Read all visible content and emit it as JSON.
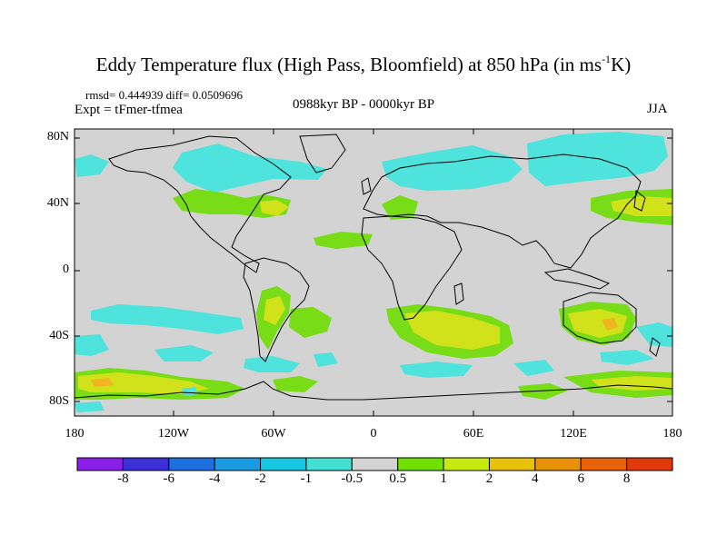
{
  "title": {
    "main": "Eddy Temperature flux (High Pass, Bloomfield) at 850 hPa (in ms",
    "sup": "-1",
    "end": "K)"
  },
  "stats_line": "rmsd= 0.444939 diff= 0.0509696",
  "experiment": "Expt = tFmer-tfmea",
  "period": "0988kyr BP - 0000kyr BP",
  "season": "JJA",
  "axes": {
    "lat_labels": [
      "80N",
      "40N",
      "0",
      "40S",
      "80S"
    ],
    "lon_labels": [
      "180",
      "120W",
      "60W",
      "0",
      "60E",
      "120E",
      "180"
    ]
  },
  "colorbar": {
    "labels": [
      "-8",
      "-6",
      "-4",
      "-2",
      "-1",
      "-0.5",
      "0.5",
      "1",
      "2",
      "4",
      "6",
      "8"
    ],
    "colors": [
      "#8b1fe8",
      "#3b2fd6",
      "#1e6fe0",
      "#1a9ae0",
      "#17c6e0",
      "#45e0d5",
      "#d3d3d3",
      "#70e000",
      "#c7ea10",
      "#e8c20a",
      "#e8920a",
      "#e8620a",
      "#e03a0a"
    ]
  },
  "map": {
    "background": "#d3d3d3",
    "palette": {
      "cyan": "#4ee3dd",
      "green": "#78dc16",
      "yellow": "#d2e21a",
      "orange": "#f0b61f"
    }
  }
}
